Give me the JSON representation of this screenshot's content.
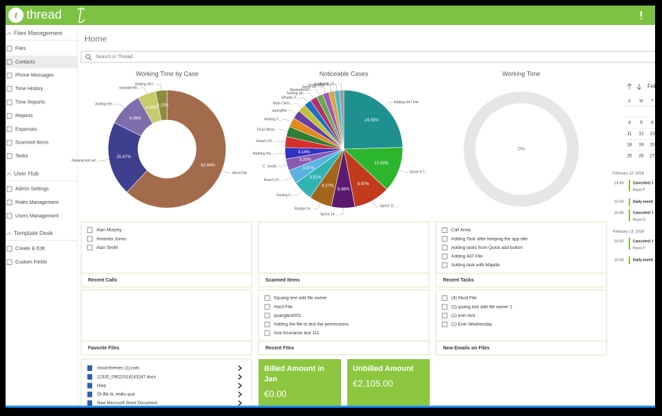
{
  "header": {
    "app_name": "thread"
  },
  "sidebar": {
    "sections": [
      {
        "title": "Files Management",
        "items": [
          "Files",
          "Contacts",
          "Phone Messages",
          "Time History",
          "Time Reports",
          "Reports",
          "Expenses",
          "Scanned Items",
          "Tasks"
        ]
      },
      {
        "title": "User Hub",
        "items": [
          "Admin Settings",
          "Roles Management",
          "Users Management"
        ]
      },
      {
        "title": "Template Desk",
        "items": [
          "Create & Edit",
          "Custom Fields"
        ]
      }
    ]
  },
  "page_title": "Home",
  "search_placeholder": "Search in Thread",
  "chart_data": [
    {
      "type": "donut",
      "title": "Working Time by Case",
      "categories": [
        "Abcd File",
        "0quang test ad...",
        "Adding the...",
        "quangtest0...",
        "Adding 447..."
      ],
      "values": [
        61.94,
        20.47,
        9.45,
        4.99,
        3.15
      ],
      "value_labels": [
        "61.94%",
        "20.47%",
        "9.45%",
        "4.99%",
        "3.15%"
      ],
      "colors": [
        "#a26b4c",
        "#3f3f8f",
        "#7d6dab",
        "#c7cb6e",
        "#8b8b3c"
      ]
    },
    {
      "type": "pie",
      "title": "Noticeable Cases",
      "categories": [
        "Adding 447 File",
        "Sprint 9 T...",
        "Sprint 11 ...",
        "Sprint 14 ...",
        "Rodger te...",
        "Testing F...",
        "Hoan's Fi...",
        "C. Smith",
        "Nothing the...",
        "Hoan's Pi...",
        "Final What...",
        "Adding F...",
        "quangfile",
        "Main Clien...",
        "Whatfix F...",
        "Testing ad...",
        "0quangtest0...",
        "Sprint 12...",
        "Hoan tes...",
        "Adding fil...",
        "Sprint 10..."
      ],
      "values": [
        24.55,
        12.43,
        9.97,
        6.48,
        6.27,
        5.51,
        3.87,
        3.2,
        3.14,
        3.0,
        2.8,
        2.6,
        2.4,
        2.2,
        2.0,
        1.9,
        1.8,
        1.7,
        1.6,
        1.4,
        1.18
      ],
      "value_labels": [
        "24.55%",
        "12.43%",
        "9.97%",
        "6.48%",
        "6.27%",
        "5.51%",
        "3.87%",
        "3.20%",
        "3.14%",
        null,
        null,
        null,
        null,
        null,
        null,
        null,
        null,
        null,
        null,
        null,
        null
      ],
      "colors": [
        "#1e9090",
        "#2eb52e",
        "#c23a1c",
        "#5b1a6f",
        "#a3641c",
        "#2fb3b3",
        "#5ab2e2",
        "#8a5ab2",
        "#3232c2",
        "#d62f2f",
        "#2e7d32",
        "#e08a1e",
        "#6a3fa0",
        "#c0c03a",
        "#1f6fbf",
        "#b0306a",
        "#6aa84f",
        "#9b59b6",
        "#d9a440",
        "#4bb7c9",
        "#999999"
      ]
    },
    {
      "type": "donut",
      "title": "Working Time",
      "values": [
        0
      ],
      "value_labels": [
        "0%"
      ],
      "colors": [
        "#e6e6e6"
      ]
    }
  ],
  "calendar": {
    "month": "Feb",
    "weekdays": [
      "S",
      "M",
      "T"
    ],
    "weeks": [
      [
        4,
        5,
        6
      ],
      [
        11,
        12,
        13
      ],
      [
        18,
        19,
        20
      ],
      [
        25,
        26,
        27
      ]
    ]
  },
  "events": [
    {
      "date": "February 12, 2018",
      "items": [
        {
          "time": "14:45",
          "title": "Canceled: I",
          "room": "Room F"
        },
        {
          "time": "15:00",
          "title": "Daily meeti"
        },
        {
          "time": "15:45",
          "title": "Canceled: I",
          "room": "Room D"
        }
      ]
    },
    {
      "date": "February 13, 2018",
      "items": [
        {
          "time": "14:45",
          "title": "Canceled: I",
          "room": "Room F"
        },
        {
          "time": "15:00",
          "title": "Daily meeti"
        }
      ]
    }
  ],
  "panels": [
    {
      "title": "Recent Calls",
      "items": [
        "Alan Murphy",
        "Amanda Jones",
        "Alan Smith"
      ]
    },
    {
      "title": "Scanned Items",
      "items": []
    },
    {
      "title": "Recent Tasks",
      "items": [
        "Call Anna",
        "Adding Task after keeping the app idle",
        "Adding tasks from Quick add button",
        "Adding 447 File",
        "Adding task with Majella"
      ]
    },
    {
      "title": "Favorite Files",
      "items": []
    },
    {
      "title": "Recent Files",
      "items": [
        "0quang test add file owner",
        "Abcd File",
        "quangtest001",
        "Adding the file to test the permissions",
        "Axa Insurance test 111"
      ]
    },
    {
      "title": "New Emails on Files",
      "items": [
        "(4) Abcd File",
        "(2) quang test add file owner 2",
        "(1) eoin test",
        "(1) Eoin Wednesday"
      ]
    }
  ],
  "file_list": [
    "cloud-themes (1).rods",
    "12335_09022018143247.docx",
    "Hiep",
    "Ôi đôi ôi, nhiều quá",
    "New Microsoft Word Document"
  ],
  "tiles": [
    {
      "title": "Billed Amount in Jan",
      "amount": "€0.00"
    },
    {
      "title": "Unbilled Amount",
      "amount": "€2,105.00"
    }
  ]
}
